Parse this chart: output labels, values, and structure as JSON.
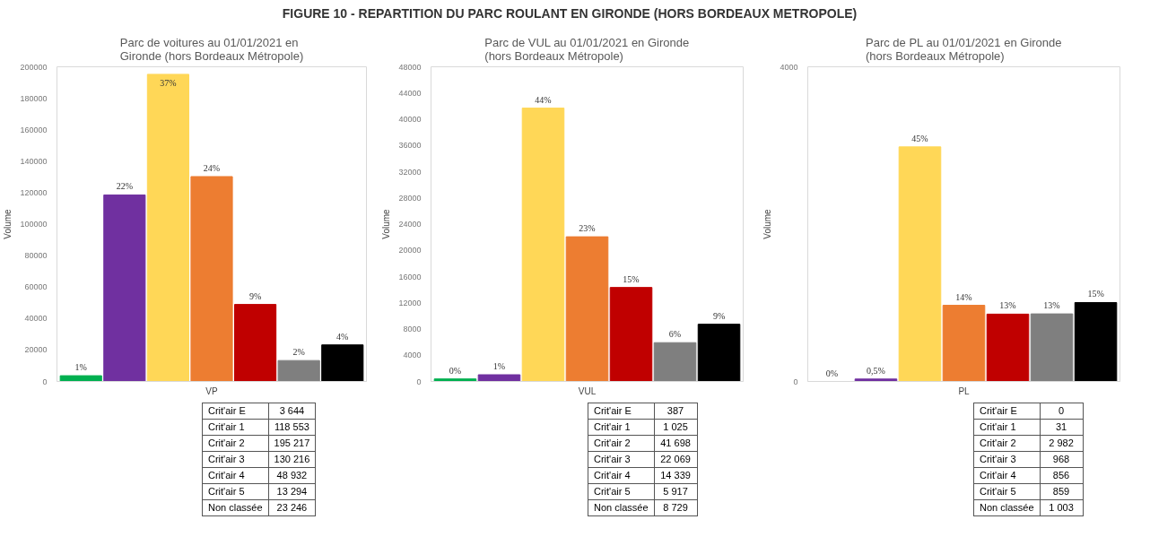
{
  "chart_data": [
    {
      "type": "bar",
      "title": "Parc de voitures au 01/01/2021 en Gironde (hors Bordeaux Métropole)",
      "subtitle": "FIGURE 10 - REPARTITION DU PARC ROULANT EN GIRONDE (HORS BORDEAUX METROPOLE)",
      "xlabel": "VP",
      "ylabel": "Volume",
      "categories": [
        null,
        null,
        null,
        null,
        null,
        null,
        null
      ],
      "values": [
        3644,
        118553,
        195217,
        130216,
        48932,
        13294,
        23246
      ],
      "annotations": [
        {
          "text": "1%",
          "y": 3644
        },
        {
          "text": "22%",
          "y": 118553
        },
        {
          "text": "37%",
          "y": 195217
        },
        {
          "text": "24%",
          "y": 130216
        },
        {
          "text": "9%",
          "y": 48932
        },
        {
          "text": "2%",
          "y": 13294
        },
        {
          "text": "4%",
          "y": 23246
        }
      ],
      "colors": [
        "#00b050",
        "#7030a0",
        "#ffd757",
        "#ed7d31",
        "#c00000",
        "#7f7f7f",
        "#000000"
      ],
      "ylim": [
        0,
        200000
      ],
      "yticks": [
        0,
        20000,
        40000,
        60000,
        80000,
        100000,
        120000,
        140000,
        160000,
        180000,
        200000
      ],
      "tick_labels": "y"
    },
    {
      "type": "bar",
      "title": "Parc de VUL au 01/01/2021 en Gironde (hors Bordeaux Métropole)",
      "xlabel": "VUL",
      "ylabel": "Volume",
      "categories": [
        null,
        null,
        null,
        null,
        null,
        null,
        null
      ],
      "values": [
        387,
        1025,
        41698,
        22069,
        14339,
        5917,
        8729
      ],
      "annotations": [
        {
          "text": "0%",
          "y": 387
        },
        {
          "text": "1%",
          "y": 1025
        },
        {
          "text": "44%",
          "y": 41698
        },
        {
          "text": "23%",
          "y": 22069
        },
        {
          "text": "15%",
          "y": 14339
        },
        {
          "text": "6%",
          "y": 5917
        },
        {
          "text": "9%",
          "y": 8729
        }
      ],
      "colors": [
        "#00b050",
        "#7030a0",
        "#ffd757",
        "#ed7d31",
        "#c00000",
        "#7f7f7f",
        "#000000"
      ],
      "ylim": [
        0,
        48000
      ],
      "yticks": [
        0,
        4000,
        8000,
        12000,
        16000,
        20000,
        24000,
        28000,
        32000,
        36000,
        40000,
        44000,
        48000
      ],
      "tick_labels": "y"
    },
    {
      "type": "bar",
      "title": "Parc de PL au 01/01/2021 en Gironde (hors Bordeaux Métropole)",
      "xlabel": "PL",
      "ylabel": "Volume",
      "categories": [
        null,
        null,
        null,
        null,
        null,
        null,
        null
      ],
      "values": [
        0,
        31,
        2982,
        968,
        856,
        859,
        1003
      ],
      "annotations": [
        {
          "text": "0%",
          "y": 0
        },
        {
          "text": "0,5%",
          "y": 31
        },
        {
          "text": "45%",
          "y": 2982
        },
        {
          "text": "14%",
          "y": 968
        },
        {
          "text": "13%",
          "y": 856
        },
        {
          "text": "13%",
          "y": 859
        },
        {
          "text": "15%",
          "y": 1003
        }
      ],
      "colors": [
        "#00b050",
        "#7030a0",
        "#ffd757",
        "#ed7d31",
        "#c00000",
        "#7f7f7f",
        "#000000"
      ],
      "ylim": [
        0,
        4000
      ],
      "yticks": [
        0,
        4000
      ],
      "tick_labels": "y"
    },
    {
      "type": "other",
      "categories": [
        "Crit'air E",
        "Crit'air 1",
        "Crit'air 2",
        "Crit'air 3",
        "Crit'air 4",
        "Crit'air 5",
        "Non classée"
      ],
      "values": [
        3644,
        118553,
        195217,
        130216,
        48932,
        13294,
        23246
      ],
      "value_labels": [
        "3 644",
        "118 553",
        "195 217",
        "130 216",
        "48 932",
        "13 294",
        "23 246"
      ]
    },
    {
      "type": "other",
      "categories": [
        "Crit'air E",
        "Crit'air 1",
        "Crit'air 2",
        "Crit'air 3",
        "Crit'air 4",
        "Crit'air 5",
        "Non classée"
      ],
      "values": [
        387,
        1025,
        41698,
        22069,
        14339,
        5917,
        8729
      ],
      "value_labels": [
        "387",
        "1 025",
        "41 698",
        "22 069",
        "14 339",
        "5 917",
        "8 729"
      ]
    },
    {
      "type": "other",
      "categories": [
        "Crit'air E",
        "Crit'air 1",
        "Crit'air 2",
        "Crit'air 3",
        "Crit'air 4",
        "Crit'air 5",
        "Non classée"
      ],
      "values": [
        0,
        31,
        2982,
        968,
        856,
        859,
        1003
      ],
      "value_labels": [
        "0",
        "31",
        "2 982",
        "968",
        "856",
        "859",
        "1 003"
      ]
    }
  ]
}
